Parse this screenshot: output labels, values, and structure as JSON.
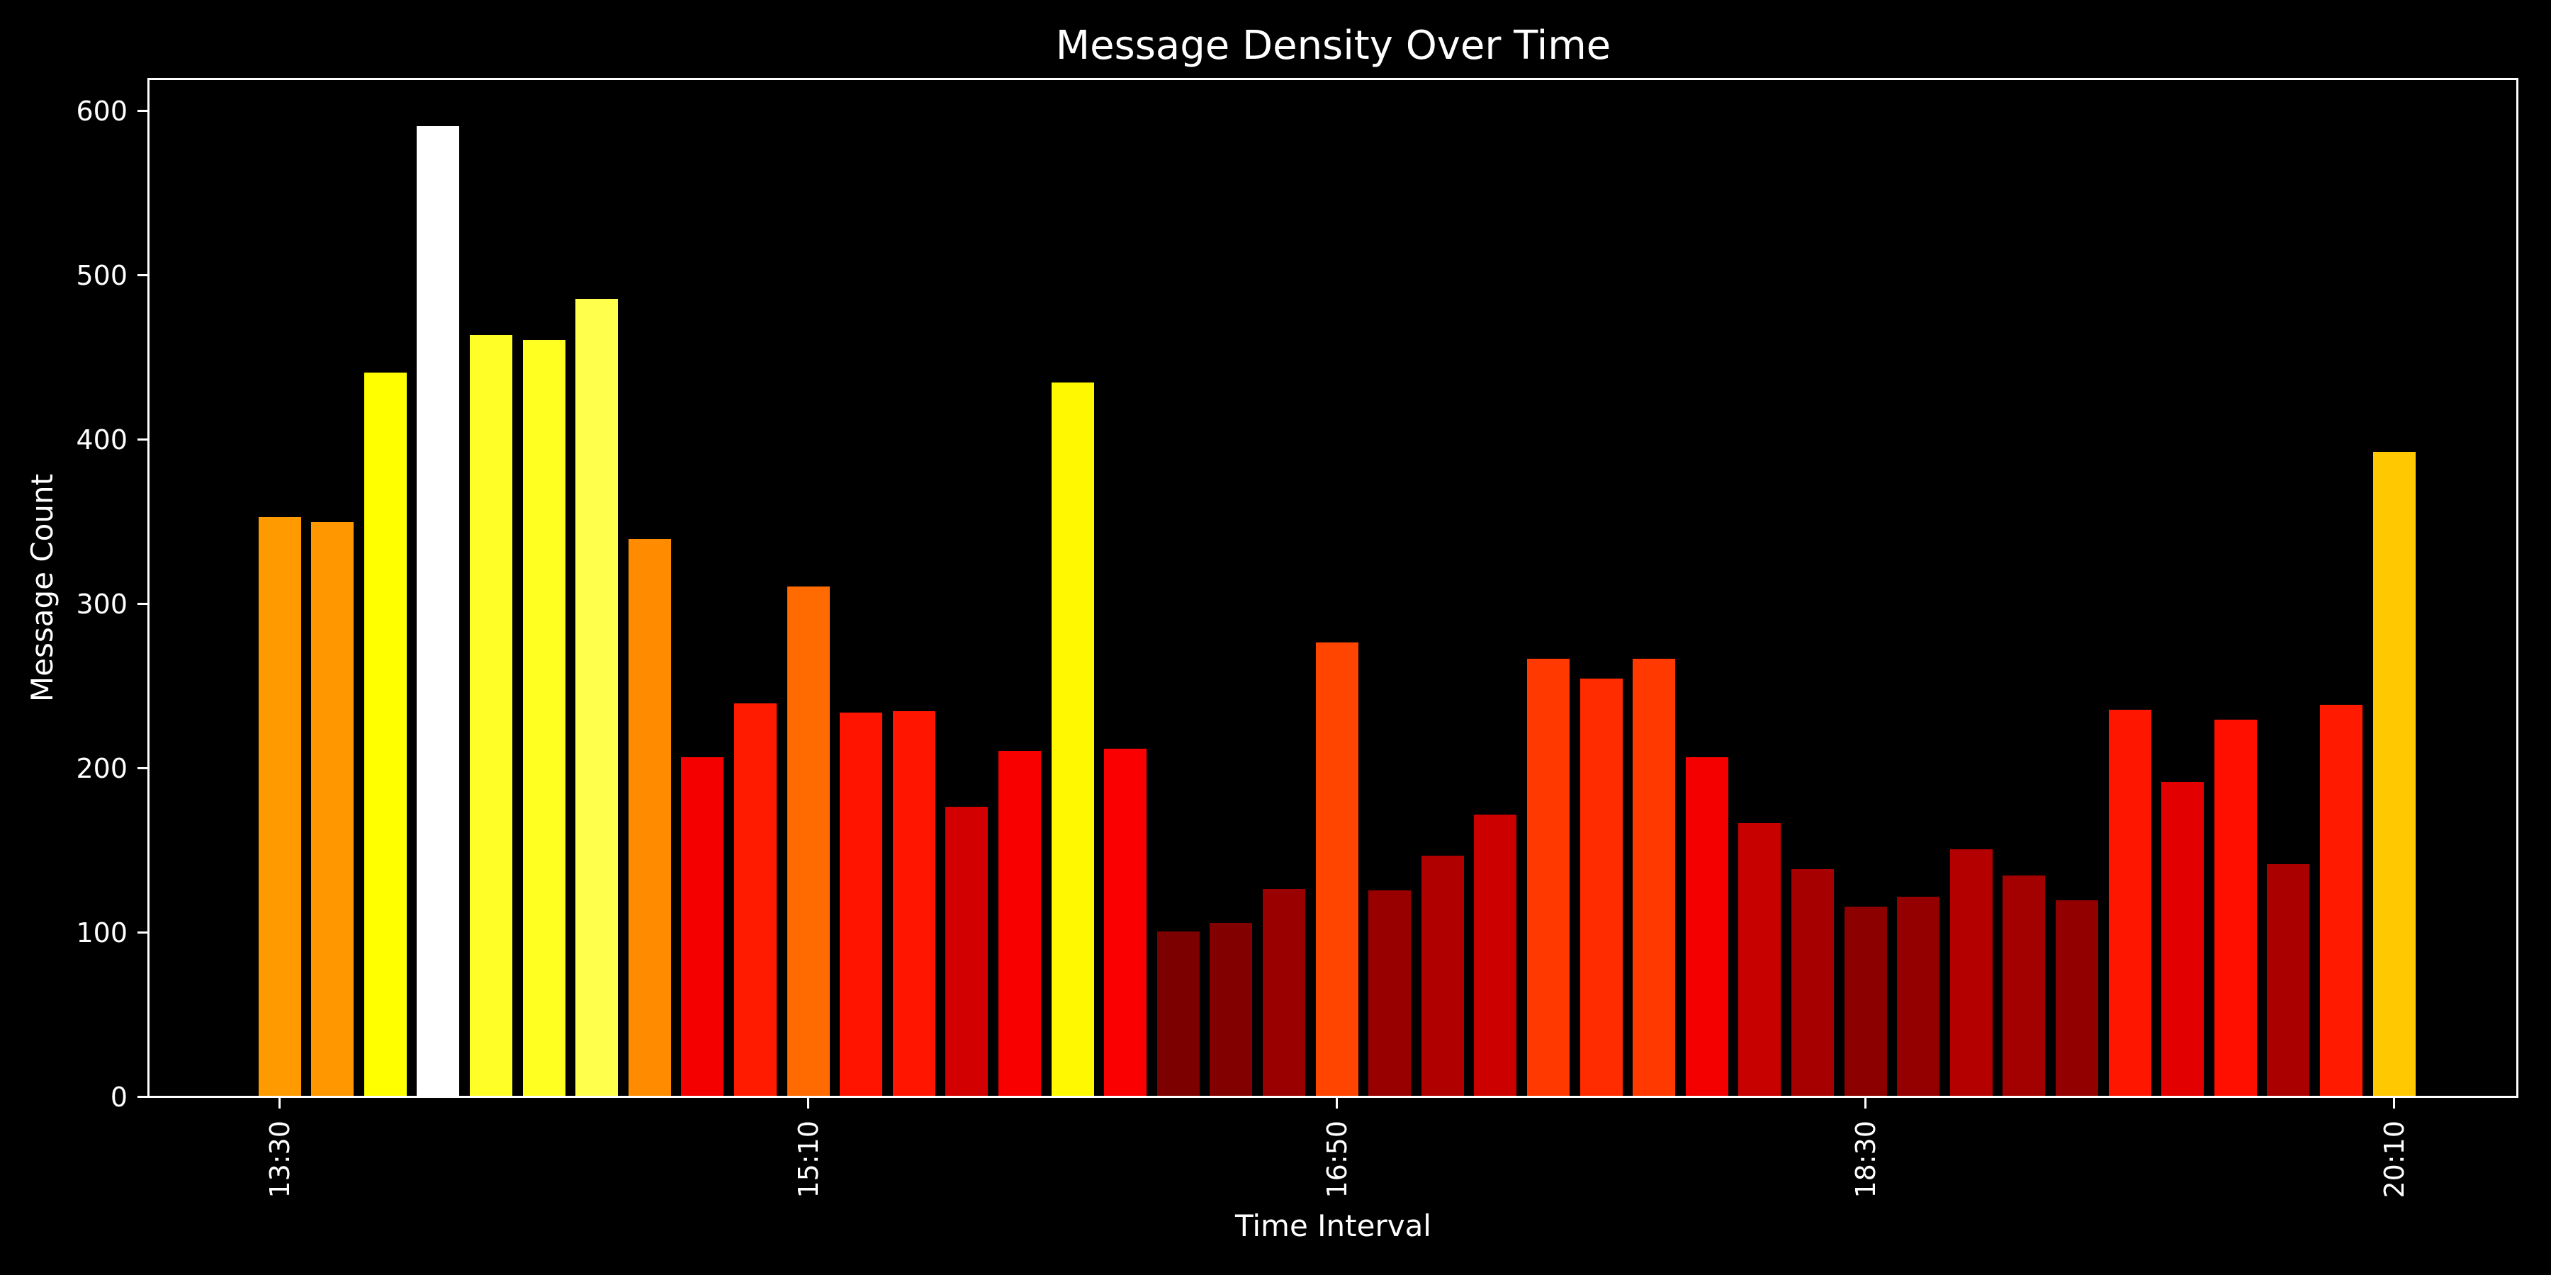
{
  "figure": {
    "background": "#000000",
    "text_color": "#ffffff"
  },
  "chart_data": {
    "type": "bar",
    "title": "Message Density Over Time",
    "xlabel": "Time Interval",
    "ylabel": "Message Count",
    "grid": false,
    "legend": "none",
    "background": "#000000",
    "axis_color": "#ffffff",
    "colormap": "hot",
    "ylim": [
      0,
      619
    ],
    "y_ticks": [
      0,
      100,
      200,
      300,
      400,
      500,
      600
    ],
    "x_tick_labels": [
      "13:30",
      "15:10",
      "16:50",
      "18:30",
      "20:10"
    ],
    "x_tick_bar_indices": [
      0,
      10,
      20,
      30,
      40
    ],
    "x_tick_label_rotation_deg": 90,
    "bar_count": 41,
    "values": [
      352,
      349,
      440,
      590,
      463,
      460,
      485,
      339,
      206,
      239,
      310,
      233,
      234,
      176,
      210,
      434,
      211,
      100,
      105,
      126,
      276,
      125,
      146,
      171,
      266,
      254,
      266,
      206,
      166,
      138,
      115,
      121,
      150,
      134,
      119,
      235,
      191,
      229,
      141,
      238,
      392
    ],
    "bar_colors": [
      "#FF9B00",
      "#FF9800",
      "#FFFF00",
      "#FFFFFF",
      "#FFFF27",
      "#FFFF22",
      "#FFFF4C",
      "#FF8C00",
      "#F40000",
      "#FF1B00",
      "#FF6B00",
      "#FF1400",
      "#FF1500",
      "#D20000",
      "#F90000",
      "#FFF800",
      "#FA0000",
      "#7C0000",
      "#820000",
      "#9A0000",
      "#FF4500",
      "#980000",
      "#B00000",
      "#CD0000",
      "#FF3900",
      "#FF2C00",
      "#FF3900",
      "#F40000",
      "#C70000",
      "#A70000",
      "#8D0000",
      "#940000",
      "#B50000",
      "#A30000",
      "#920000",
      "#FF1600",
      "#E30000",
      "#FF0F00",
      "#AB0000",
      "#FF1A00",
      "#FFC800"
    ]
  }
}
